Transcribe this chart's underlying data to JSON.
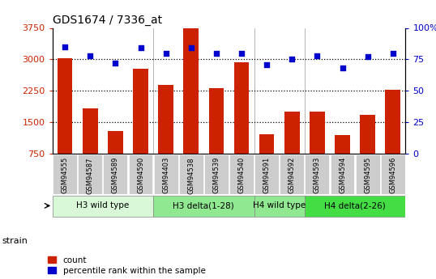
{
  "title": "GDS1674 / 7336_at",
  "categories": [
    "GSM94555",
    "GSM94587",
    "GSM94589",
    "GSM94590",
    "GSM94403",
    "GSM94538",
    "GSM94539",
    "GSM94540",
    "GSM94591",
    "GSM94592",
    "GSM94593",
    "GSM94594",
    "GSM94595",
    "GSM94596"
  ],
  "counts": [
    3020,
    1830,
    1280,
    2780,
    2380,
    3740,
    2320,
    2930,
    1220,
    1750,
    1750,
    1200,
    1680,
    2280
  ],
  "percentiles": [
    85,
    78,
    72,
    84,
    80,
    84,
    80,
    80,
    71,
    75,
    78,
    68,
    77,
    80
  ],
  "ylim_left": [
    750,
    3750
  ],
  "ylim_right": [
    0,
    100
  ],
  "yticks_left": [
    750,
    1500,
    2250,
    3000,
    3750
  ],
  "yticks_right": [
    0,
    25,
    50,
    75,
    100
  ],
  "group_defs": [
    {
      "label": "H3 wild type",
      "start": 0,
      "end": 4,
      "color": "#d8f8d8"
    },
    {
      "label": "H3 delta(1-28)",
      "start": 4,
      "end": 8,
      "color": "#90e890"
    },
    {
      "label": "H4 wild type",
      "start": 8,
      "end": 10,
      "color": "#90e890"
    },
    {
      "label": "H4 delta(2-26)",
      "start": 10,
      "end": 14,
      "color": "#44dd44"
    }
  ],
  "bar_color": "#cc2200",
  "dot_color": "#0000cc",
  "bg_color": "#ffffff",
  "axis_color_left": "#cc2200",
  "axis_color_right": "#0000cc",
  "legend_count_label": "count",
  "legend_pct_label": "percentile rank within the sample",
  "strain_label": "strain",
  "tick_bg_color": "#cccccc",
  "plot_bg_color": "#ffffff",
  "grid_dotted_at": [
    1500,
    2250,
    3000
  ]
}
